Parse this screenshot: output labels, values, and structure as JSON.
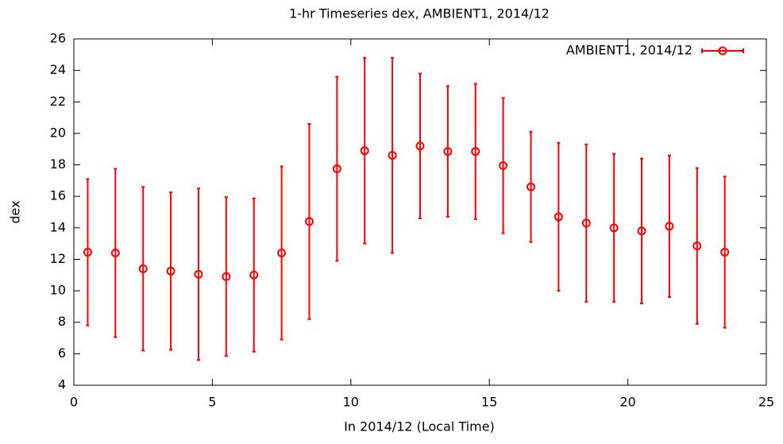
{
  "chart_data": {
    "type": "errorbar",
    "title": "1-hr Timeseries dex, AMBIENT1, 2014/12",
    "xlabel": "In 2014/12 (Local Time)",
    "ylabel": "dex",
    "x": [
      0.5,
      1.5,
      2.5,
      3.5,
      4.5,
      5.5,
      6.5,
      7.5,
      8.5,
      9.5,
      10.5,
      11.5,
      12.5,
      13.5,
      14.5,
      15.5,
      16.5,
      17.5,
      18.5,
      19.5,
      20.5,
      21.5,
      22.5,
      23.5
    ],
    "series": [
      {
        "name": "AMBIENT1, 2014/12",
        "color": "#ff0000",
        "values": [
          12.45,
          12.4,
          11.4,
          11.25,
          11.05,
          10.9,
          11.0,
          12.4,
          14.4,
          17.75,
          18.9,
          18.6,
          19.2,
          18.85,
          18.85,
          17.95,
          16.6,
          14.7,
          14.3,
          14.0,
          13.8,
          14.1,
          12.85,
          12.45
        ],
        "errors": [
          4.65,
          5.35,
          5.2,
          5.0,
          5.45,
          5.05,
          4.87,
          5.5,
          6.2,
          5.85,
          5.9,
          6.2,
          4.6,
          4.15,
          4.3,
          4.3,
          3.5,
          4.7,
          5.0,
          4.7,
          4.6,
          4.5,
          4.95,
          4.8
        ]
      }
    ],
    "xlim": [
      0,
      25
    ],
    "xticks": [
      0,
      5,
      10,
      15,
      20,
      25
    ],
    "ylim": [
      4,
      26
    ],
    "yticks": [
      4,
      6,
      8,
      10,
      12,
      14,
      16,
      18,
      20,
      22,
      24,
      26
    ],
    "grid": false,
    "legend": "top-right"
  }
}
